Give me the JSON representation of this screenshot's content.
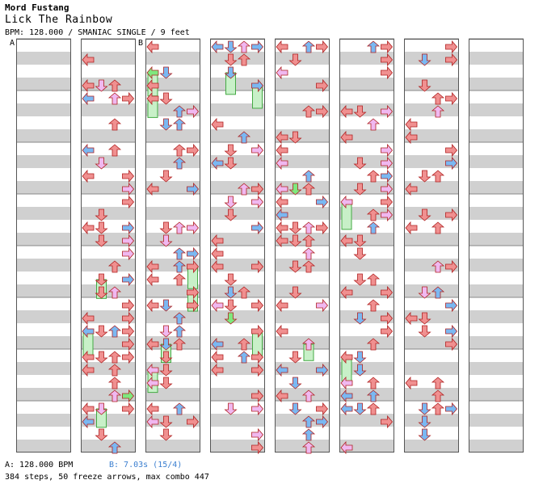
{
  "header": {
    "artist": "Mord Fustang",
    "title": "Lick The Rainbow",
    "info": "BPM: 128.000 / SMANIAC SINGLE / 9 feet"
  },
  "markers": {
    "a": "A",
    "b": "B"
  },
  "footer": {
    "bpm_a": "A: 128.000 BPM",
    "bpm_b": "B: 7.03s (15/4)",
    "stats": "384 steps, 50 freeze arrows, max combo 447"
  },
  "colors": {
    "left": "#f09090",
    "down": "#f09090",
    "up": "#f09090",
    "right": "#f09090",
    "eighth_blue": "#7ab8f2",
    "sixteenth_pink": "#f0b8f0",
    "green": "#7ee87e",
    "yellow": "#f0e040",
    "freeze": "#c8f0c8",
    "stripe": "#d0d0d0"
  },
  "chart_data": {
    "type": "step-chart",
    "columns": 8,
    "measures_per_column": 8,
    "lanes": [
      "left",
      "down",
      "up",
      "right"
    ],
    "total_steps": 384,
    "freeze_arrows": 50,
    "max_combo": 447
  }
}
